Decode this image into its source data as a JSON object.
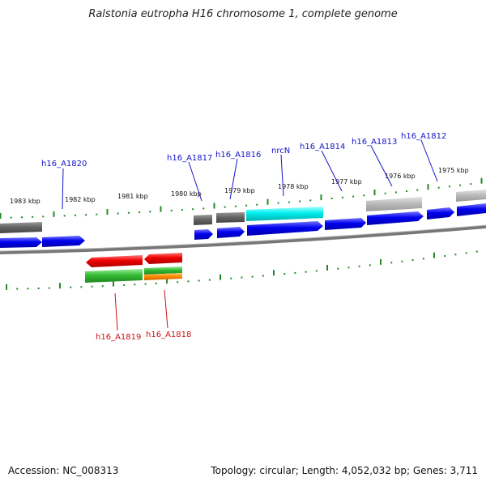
{
  "title": "Ralstonia eutropha H16 chromosome 1, complete genome",
  "footer": {
    "accession": "Accession: NC_008313",
    "summary": "Topology: circular; Length: 4,052,032 bp; Genes: 3,711"
  },
  "colors": {
    "backbone": "#888888",
    "ticks": "#228b22",
    "forward_label": "#1515c8",
    "reverse_label": "#cc1111",
    "blue_gene": "#0000ee",
    "red_gene": "#ee0000",
    "green_gene": "#33bb33",
    "orange_gene": "#ff8c00",
    "cyan_gene": "#00eeee",
    "darkgray_gene": "#666666",
    "lightgray_gene": "#bbbbbb"
  },
  "kbp_labels": [
    "1983 kbp",
    "1982 kbp",
    "1981 kbp",
    "1980 kbp",
    "1979 kbp",
    "1978 kbp",
    "1977 kbp",
    "1976 kbp",
    "1975 kbp"
  ],
  "forward_genes": [
    "h16_A1820",
    "h16_A1817",
    "h16_A1816",
    "nrcN",
    "h16_A1814",
    "h16_A1813",
    "h16_A1812"
  ],
  "reverse_genes": [
    "h16_A1819",
    "h16_A1818"
  ]
}
